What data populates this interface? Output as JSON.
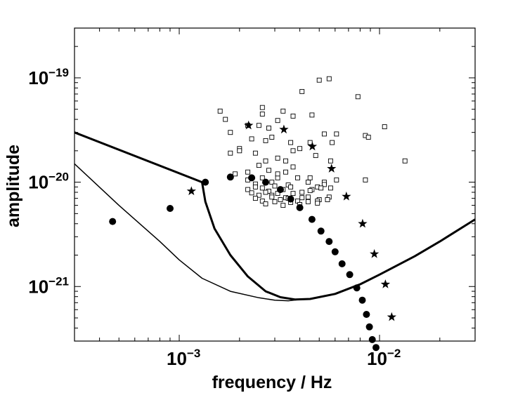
{
  "chart_data": {
    "type": "scatter",
    "title": "",
    "xlabel": "frequency / Hz",
    "ylabel": "amplitude",
    "xscale": "log",
    "yscale": "log",
    "xlim": [
      0.0003,
      0.03
    ],
    "ylim": [
      3e-22,
      3e-19
    ],
    "grid": false,
    "x_ticks": [
      {
        "value": 0.001,
        "base": "10",
        "exp": "−3"
      },
      {
        "value": 0.01,
        "base": "10",
        "exp": "−2"
      }
    ],
    "y_ticks": [
      {
        "value": 1e-21,
        "base": "10",
        "exp": "−21"
      },
      {
        "value": 1e-20,
        "base": "10",
        "exp": "−20"
      },
      {
        "value": 1e-19,
        "base": "10",
        "exp": "−19"
      }
    ],
    "series": [
      {
        "name": "sensitivity curve (thick)",
        "kind": "line",
        "color": "#000000",
        "x": [
          0.0003,
          0.0013,
          0.00135,
          0.0015,
          0.0018,
          0.0022,
          0.0027,
          0.0032,
          0.0038,
          0.0045,
          0.006,
          0.008,
          0.01,
          0.015,
          0.02,
          0.03
        ],
        "y": [
          3e-20,
          1e-20,
          6.5e-21,
          3.6e-21,
          2e-21,
          1.25e-21,
          9e-22,
          7.9e-22,
          7.5e-22,
          7.6e-22,
          8.5e-22,
          1.05e-21,
          1.3e-21,
          1.95e-21,
          2.7e-21,
          4.4e-21
        ]
      },
      {
        "name": "sensitivity curve (thin)",
        "kind": "line",
        "color": "#000000",
        "x": [
          0.0003,
          0.0005,
          0.0008,
          0.001,
          0.0013,
          0.0018,
          0.0025,
          0.003,
          0.0035,
          0.004
        ],
        "y": [
          1.5e-20,
          6e-21,
          2.7e-21,
          1.8e-21,
          1.2e-21,
          9e-22,
          7.8e-22,
          7.4e-22,
          7.3e-22,
          7.5e-22
        ]
      },
      {
        "name": "open squares",
        "kind": "square",
        "x": [
          0.0026,
          0.0041,
          0.005,
          0.0056,
          0.0061,
          0.0078,
          0.0106,
          0.0134,
          0.0016,
          0.0022,
          0.0026,
          0.0028,
          0.0031,
          0.0033,
          0.0037,
          0.0046,
          0.0017,
          0.0018,
          0.002,
          0.0023,
          0.0025,
          0.0027,
          0.0029,
          0.0036,
          0.0045,
          0.0053,
          0.0058,
          0.0085,
          0.0088,
          0.0018,
          0.002,
          0.0024,
          0.0027,
          0.0031,
          0.0034,
          0.0037,
          0.004,
          0.0048,
          0.0057,
          0.0019,
          0.0022,
          0.0025,
          0.0028,
          0.0031,
          0.0034,
          0.0037,
          0.0045,
          0.0053,
          0.0061,
          0.0085,
          0.0022,
          0.0024,
          0.0026,
          0.0029,
          0.0031,
          0.0035,
          0.0039,
          0.0044,
          0.0049,
          0.0053,
          0.0057,
          0.0022,
          0.0024,
          0.0026,
          0.0028,
          0.003,
          0.0033,
          0.0036,
          0.0041,
          0.0046,
          0.0051,
          0.0056,
          0.0023,
          0.0025,
          0.0027,
          0.0029,
          0.0031,
          0.0034,
          0.0037,
          0.0041,
          0.0045,
          0.005,
          0.0024,
          0.0026,
          0.0029,
          0.0032,
          0.0035,
          0.0039,
          0.0044,
          0.0049,
          0.0055,
          0.0027,
          0.003,
          0.0033,
          0.0036,
          0.004,
          0.0044,
          0.0049
        ],
        "y": [
          5.2e-20,
          7.4e-20,
          9.5e-20,
          9.8e-20,
          2.9e-20,
          6.6e-20,
          3.4e-20,
          1.6e-20,
          4.8e-20,
          3.5e-20,
          4.5e-20,
          3.3e-20,
          3.9e-20,
          4.8e-20,
          4.3e-20,
          4.4e-20,
          4e-20,
          3e-20,
          2.1e-20,
          2.6e-20,
          3.5e-20,
          2.5e-20,
          2.7e-20,
          2.4e-20,
          2.4e-20,
          2.9e-20,
          2.4e-20,
          2.8e-20,
          2.7e-20,
          1.9e-20,
          2e-20,
          1.9e-20,
          1.6e-20,
          1.7e-20,
          1.6e-20,
          2e-20,
          2.1e-20,
          1.8e-20,
          1.6e-20,
          1.2e-20,
          1.25e-20,
          1.45e-20,
          1.3e-20,
          1.1e-20,
          1.25e-20,
          1.4e-20,
          1.1e-20,
          1e-20,
          1.05e-20,
          1.05e-20,
          1.05e-20,
          9.6e-21,
          1.1e-20,
          1e-20,
          1.2e-20,
          9.4e-21,
          1.1e-20,
          1e-20,
          9e-21,
          9.5e-21,
          8.8e-21,
          8.5e-21,
          9e-21,
          8.8e-21,
          8.2e-21,
          9.2e-21,
          8.5e-21,
          9e-21,
          8e-21,
          8.5e-21,
          8.8e-21,
          7.2e-21,
          7.9e-21,
          7.5e-21,
          8e-21,
          7.5e-21,
          7.8e-21,
          7.1e-21,
          7.8e-21,
          7.1e-21,
          8.3e-21,
          6.8e-21,
          7e-21,
          6.6e-21,
          7.2e-21,
          6.8e-21,
          7e-21,
          6.6e-21,
          7.2e-21,
          6.6e-21,
          6.8e-21,
          6.2e-21,
          6.5e-21,
          6e-21,
          6.4e-21,
          6.1e-21,
          6.5e-21,
          6.3e-21
        ]
      },
      {
        "name": "filled circles",
        "kind": "circle",
        "x": [
          0.000465,
          0.0009,
          0.00135,
          0.0018,
          0.0023,
          0.0027,
          0.0032,
          0.0036,
          0.004,
          0.0046,
          0.0051,
          0.0056,
          0.006,
          0.0065,
          0.0071,
          0.0077,
          0.0082,
          0.0086,
          0.0089,
          0.0092,
          0.0096
        ],
        "y": [
          4.2e-21,
          5.6e-21,
          1e-20,
          1.12e-20,
          1.1e-20,
          1e-20,
          8.5e-21,
          6.9e-21,
          5.7e-21,
          4.4e-21,
          3.4e-21,
          2.7e-21,
          2.15e-21,
          1.65e-21,
          1.3e-21,
          9.7e-22,
          7.4e-22,
          5.4e-22,
          4.1e-22,
          3.1e-22,
          2.6e-22
        ]
      },
      {
        "name": "stars",
        "kind": "star",
        "x": [
          0.00115,
          0.00222,
          0.00333,
          0.00462,
          0.00576,
          0.00683,
          0.00823,
          0.00942,
          0.0107,
          0.0115
        ],
        "y": [
          8.2e-21,
          3.5e-20,
          3.2e-20,
          2.2e-20,
          1.35e-20,
          7.3e-21,
          4e-21,
          2.05e-21,
          1.05e-21,
          5.1e-22
        ]
      }
    ]
  }
}
